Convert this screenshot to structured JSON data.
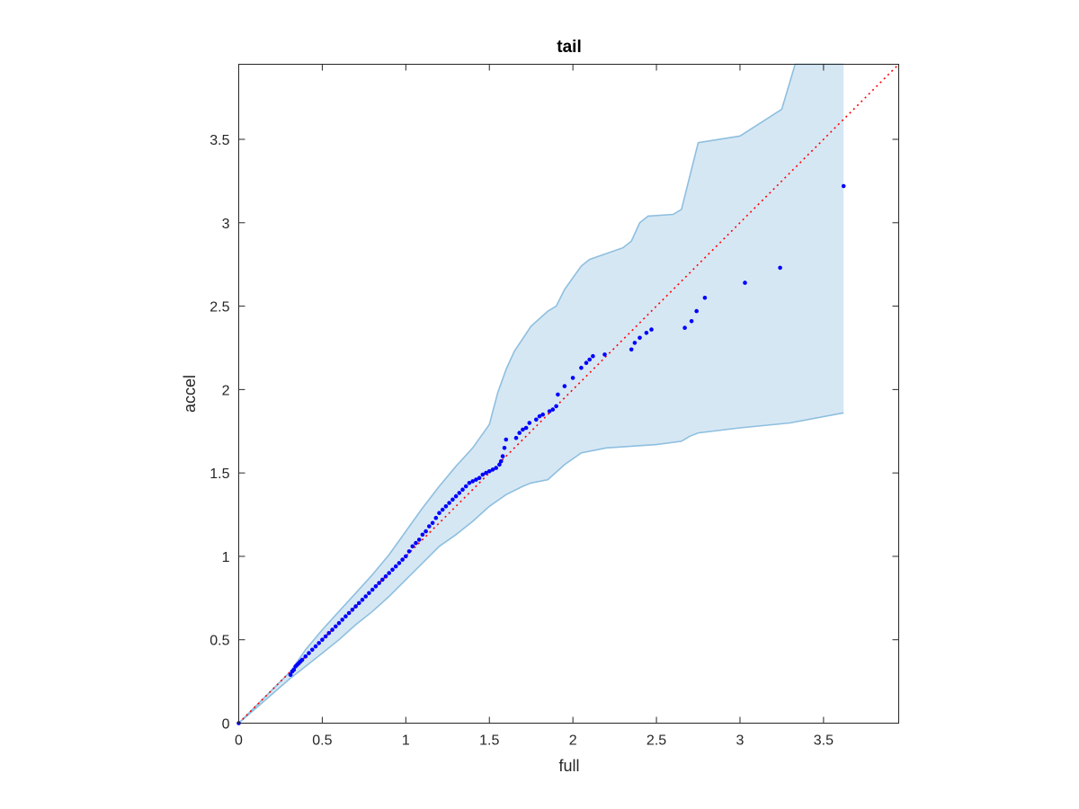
{
  "chart_data": {
    "type": "scatter",
    "title": "tail",
    "xlabel": "full",
    "ylabel": "accel",
    "xlim": [
      0,
      3.95
    ],
    "ylim": [
      0,
      3.95
    ],
    "xticks": [
      "0",
      "0.5",
      "1",
      "1.5",
      "2",
      "2.5",
      "3",
      "3.5"
    ],
    "yticks": [
      "0",
      "0.5",
      "1",
      "1.5",
      "2",
      "2.5",
      "3",
      "3.5"
    ],
    "grid": false,
    "colors": {
      "points": "#0000ff",
      "reference": "#ff0000",
      "band_fill": "#d6e7f4",
      "band_edge": "#8ebfdf",
      "axes": "#262626"
    },
    "reference_line": {
      "x": [
        0,
        3.95
      ],
      "y": [
        0,
        3.95
      ],
      "style": "dotted"
    },
    "band": {
      "upper": [
        [
          0,
          0
        ],
        [
          0.31,
          0.31
        ],
        [
          0.4,
          0.44
        ],
        [
          0.5,
          0.56
        ],
        [
          0.6,
          0.67
        ],
        [
          0.7,
          0.78
        ],
        [
          0.8,
          0.89
        ],
        [
          0.9,
          1.01
        ],
        [
          1.0,
          1.15
        ],
        [
          1.1,
          1.29
        ],
        [
          1.2,
          1.42
        ],
        [
          1.3,
          1.54
        ],
        [
          1.4,
          1.65
        ],
        [
          1.5,
          1.79
        ],
        [
          1.55,
          1.98
        ],
        [
          1.6,
          2.12
        ],
        [
          1.65,
          2.23
        ],
        [
          1.75,
          2.38
        ],
        [
          1.85,
          2.47
        ],
        [
          1.9,
          2.5
        ],
        [
          1.95,
          2.6
        ],
        [
          2.05,
          2.74
        ],
        [
          2.1,
          2.78
        ],
        [
          2.3,
          2.85
        ],
        [
          2.35,
          2.89
        ],
        [
          2.4,
          3.0
        ],
        [
          2.45,
          3.04
        ],
        [
          2.6,
          3.05
        ],
        [
          2.65,
          3.08
        ],
        [
          2.75,
          3.48
        ],
        [
          3.0,
          3.52
        ],
        [
          3.25,
          3.68
        ],
        [
          3.33,
          3.95
        ],
        [
          3.62,
          3.95
        ]
      ],
      "lower": [
        [
          0,
          0
        ],
        [
          0.31,
          0.27
        ],
        [
          0.4,
          0.34
        ],
        [
          0.5,
          0.42
        ],
        [
          0.6,
          0.5
        ],
        [
          0.7,
          0.59
        ],
        [
          0.8,
          0.67
        ],
        [
          0.9,
          0.76
        ],
        [
          1.0,
          0.86
        ],
        [
          1.1,
          0.96
        ],
        [
          1.2,
          1.06
        ],
        [
          1.3,
          1.13
        ],
        [
          1.4,
          1.21
        ],
        [
          1.5,
          1.3
        ],
        [
          1.6,
          1.37
        ],
        [
          1.7,
          1.42
        ],
        [
          1.75,
          1.44
        ],
        [
          1.85,
          1.46
        ],
        [
          1.95,
          1.55
        ],
        [
          2.05,
          1.62
        ],
        [
          2.2,
          1.65
        ],
        [
          2.5,
          1.67
        ],
        [
          2.65,
          1.69
        ],
        [
          2.7,
          1.72
        ],
        [
          2.75,
          1.74
        ],
        [
          3.0,
          1.77
        ],
        [
          3.3,
          1.8
        ],
        [
          3.62,
          1.86
        ]
      ]
    },
    "series": [
      {
        "x": [
          0,
          0.31,
          0.32,
          0.33,
          0.34,
          0.35,
          0.36,
          0.37,
          0.38,
          0.4,
          0.42,
          0.44,
          0.46,
          0.48,
          0.5,
          0.52,
          0.54,
          0.56,
          0.58,
          0.6,
          0.62,
          0.64,
          0.66,
          0.68,
          0.7,
          0.72,
          0.74,
          0.76,
          0.78,
          0.8,
          0.82,
          0.84,
          0.86,
          0.88,
          0.9,
          0.92,
          0.94,
          0.96,
          0.98,
          1.0,
          1.02,
          1.04,
          1.06,
          1.08,
          1.1,
          1.12,
          1.14,
          1.16,
          1.18,
          1.2,
          1.22,
          1.24,
          1.26,
          1.28,
          1.3,
          1.32,
          1.34,
          1.36,
          1.38,
          1.4,
          1.42,
          1.44,
          1.46,
          1.48,
          1.5,
          1.52,
          1.54,
          1.56,
          1.57,
          1.58,
          1.59,
          1.6,
          1.66,
          1.68,
          1.7,
          1.72,
          1.74,
          1.78,
          1.8,
          1.82,
          1.86,
          1.88,
          1.9,
          1.91,
          1.95,
          2.0,
          2.05,
          2.08,
          2.1,
          2.12,
          2.19,
          2.35,
          2.37,
          2.4,
          2.44,
          2.47,
          2.67,
          2.71,
          2.74,
          2.79,
          3.03,
          3.24,
          3.62
        ],
        "y": [
          0,
          0.29,
          0.31,
          0.32,
          0.34,
          0.35,
          0.36,
          0.37,
          0.38,
          0.4,
          0.42,
          0.44,
          0.46,
          0.48,
          0.5,
          0.52,
          0.54,
          0.56,
          0.58,
          0.6,
          0.62,
          0.64,
          0.66,
          0.68,
          0.7,
          0.72,
          0.74,
          0.76,
          0.78,
          0.8,
          0.82,
          0.84,
          0.86,
          0.88,
          0.9,
          0.92,
          0.94,
          0.96,
          0.98,
          1.0,
          1.03,
          1.06,
          1.08,
          1.1,
          1.13,
          1.15,
          1.18,
          1.2,
          1.23,
          1.26,
          1.28,
          1.3,
          1.32,
          1.34,
          1.36,
          1.38,
          1.4,
          1.42,
          1.44,
          1.45,
          1.46,
          1.47,
          1.49,
          1.5,
          1.51,
          1.52,
          1.53,
          1.55,
          1.57,
          1.6,
          1.65,
          1.7,
          1.71,
          1.74,
          1.76,
          1.77,
          1.8,
          1.82,
          1.84,
          1.85,
          1.87,
          1.88,
          1.9,
          1.97,
          2.02,
          2.07,
          2.13,
          2.16,
          2.18,
          2.2,
          2.21,
          2.24,
          2.28,
          2.31,
          2.34,
          2.36,
          2.37,
          2.41,
          2.47,
          2.55,
          2.64,
          2.73,
          3.22
        ]
      }
    ]
  }
}
